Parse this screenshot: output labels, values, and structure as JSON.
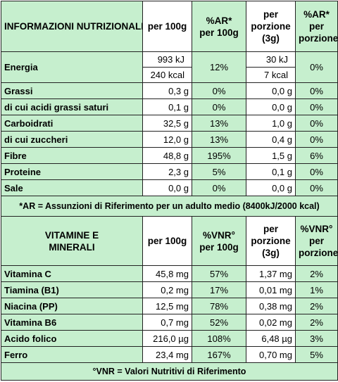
{
  "table1": {
    "headers": {
      "col1": "INFORMAZIONI NUTRIZIONALI",
      "col2": "per 100g",
      "col3_line1": "%AR*",
      "col3_line2": "per 100g",
      "col4_line1": "per",
      "col4_line2": "porzione",
      "col4_line3": "(3g)",
      "col5_line1": "%AR*",
      "col5_line2": "per",
      "col5_line3": "porzione"
    },
    "energia": {
      "name": "Energia",
      "per100_kj": "993 kJ",
      "per100_kcal": "240 kcal",
      "ar100": "12%",
      "porz_kj": "30 kJ",
      "porz_kcal": "7 kcal",
      "arporz": "0%"
    },
    "rows": [
      {
        "name": "Grassi",
        "per100": "0,3 g",
        "ar100": "0%",
        "porz": "0,0 g",
        "arporz": "0%"
      },
      {
        "name": "di cui acidi grassi saturi",
        "per100": "0,1 g",
        "ar100": "0%",
        "porz": "0,0 g",
        "arporz": "0%"
      },
      {
        "name": "Carboidrati",
        "per100": "32,5 g",
        "ar100": "13%",
        "porz": "1,0 g",
        "arporz": "0%"
      },
      {
        "name": "di cui zuccheri",
        "per100": "12,0 g",
        "ar100": "13%",
        "porz": "0,4 g",
        "arporz": "0%"
      },
      {
        "name": "Fibre",
        "per100": "48,8 g",
        "ar100": "195%",
        "porz": "1,5 g",
        "arporz": "6%"
      },
      {
        "name": "Proteine",
        "per100": "2,3 g",
        "ar100": "5%",
        "porz": "0,1 g",
        "arporz": "0%"
      },
      {
        "name": "Sale",
        "per100": "0,0 g",
        "ar100": "0%",
        "porz": "0,0 g",
        "arporz": "0%"
      }
    ],
    "note": "*AR = Assunzioni di Riferimento per un adulto medio (8400kJ/2000 kcal)"
  },
  "table2": {
    "headers": {
      "col1": "VITAMINE E MINERALI",
      "col2": "per 100g",
      "col3_line1": "%VNR°",
      "col3_line2": "per 100g",
      "col4_line1": "per",
      "col4_line2": "porzione",
      "col4_line3": "(3g)",
      "col5_line1": "%VNR°",
      "col5_line2": "per",
      "col5_line3": "porzione"
    },
    "rows": [
      {
        "name": "Vitamina C",
        "per100": "45,8 mg",
        "vnr100": "57%",
        "porz": "1,37 mg",
        "vnrporz": "2%"
      },
      {
        "name": "Tiamina (B1)",
        "per100": "0,2 mg",
        "vnr100": "17%",
        "porz": "0,01 mg",
        "vnrporz": "1%"
      },
      {
        "name": "Niacina (PP)",
        "per100": "12,5 mg",
        "vnr100": "78%",
        "porz": "0,38 mg",
        "vnrporz": "2%"
      },
      {
        "name": "Vitamina B6",
        "per100": "0,7 mg",
        "vnr100": "52%",
        "porz": "0,02 mg",
        "vnrporz": "2%"
      },
      {
        "name": "Acido folico",
        "per100": "216,0 µg",
        "vnr100": "108%",
        "porz": "6,48 µg",
        "vnrporz": "3%"
      },
      {
        "name": "Ferro",
        "per100": "23,4 mg",
        "vnr100": "167%",
        "porz": "0,70 mg",
        "vnrporz": "5%"
      }
    ],
    "note": "°VNR = Valori Nutritivi di Riferimento"
  },
  "colors": {
    "green_fill": "#c6efce",
    "border": "#222222"
  }
}
